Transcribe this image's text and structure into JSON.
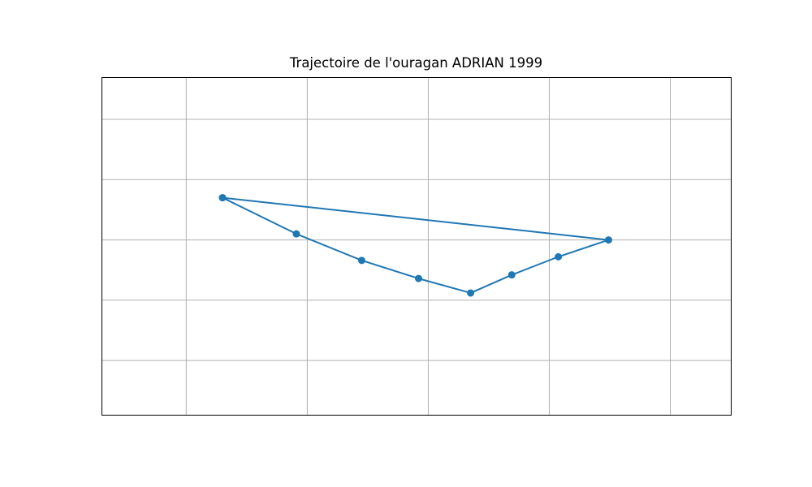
{
  "chart_data": {
    "type": "line",
    "title": "Trajectoire de l'ouragan ADRIAN 1999",
    "xlabel": "",
    "ylabel": "",
    "xlim": [
      -107,
      -96.6
    ],
    "ylim": [
      12.05,
      14.85
    ],
    "grid": true,
    "x_gridlines": [
      -105.6,
      -103.6,
      -101.6,
      -99.6,
      -97.6
    ],
    "y_gridlines": [
      12.5,
      13.0,
      13.5,
      14.0,
      14.5
    ],
    "series": [
      {
        "color": "#1f77b4",
        "marker": "circle",
        "points": [
          {
            "x": -105.0,
            "y": 13.85
          },
          {
            "x": -103.78,
            "y": 13.55
          },
          {
            "x": -102.7,
            "y": 13.33
          },
          {
            "x": -101.76,
            "y": 13.18
          },
          {
            "x": -100.9,
            "y": 13.06
          },
          {
            "x": -100.22,
            "y": 13.21
          },
          {
            "x": -99.45,
            "y": 13.36
          },
          {
            "x": -98.62,
            "y": 13.5
          },
          {
            "x": -105.0,
            "y": 13.85
          }
        ]
      }
    ]
  }
}
